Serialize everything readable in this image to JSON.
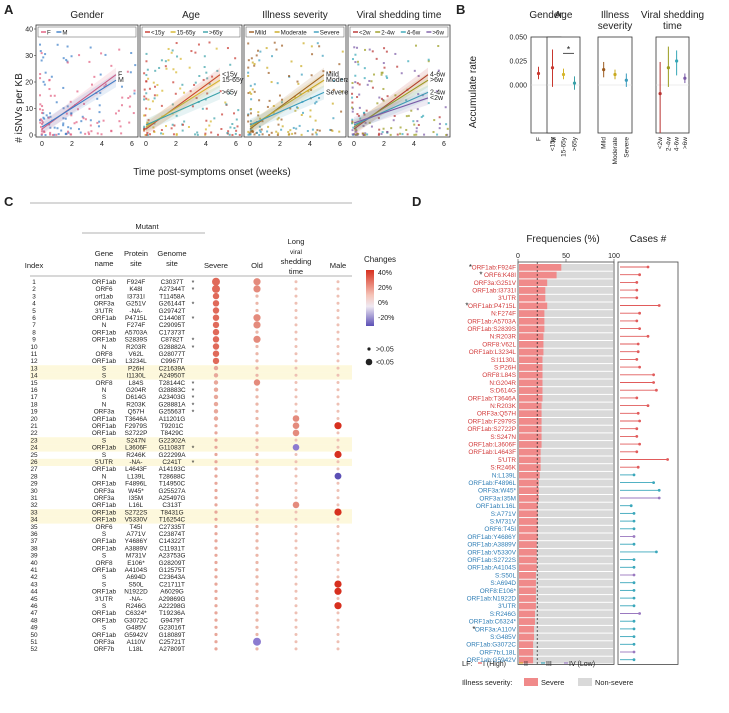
{
  "panels": {
    "a": "A",
    "b": "B",
    "c": "C",
    "d": "D"
  },
  "panel_a": {
    "ylabel": "# iSNVs per KB",
    "xlabel": "Time post-symptoms onset (weeks)",
    "yticks": [
      "0",
      "10",
      "20",
      "30",
      "40"
    ],
    "xticks": [
      "0",
      "2",
      "4",
      "6"
    ],
    "facets": [
      {
        "title": "Gender",
        "legend": [
          "F",
          "M"
        ],
        "lines": [
          "F",
          "M"
        ],
        "colors": [
          "#e15b7e",
          "#3b7ec7"
        ]
      },
      {
        "title": "Age",
        "legend": [
          "<15y",
          "15-65y",
          ">65y"
        ],
        "lines": [
          "<15y",
          "15-65y",
          ">65y"
        ],
        "colors": [
          "#c8382f",
          "#d6b52a",
          "#3aa1a8"
        ]
      },
      {
        "title": "Illness severity",
        "legend": [
          "Mild",
          "Moderate",
          "Severe"
        ],
        "lines": [
          "Mild",
          "Moderate",
          "Severe"
        ],
        "colors": [
          "#9c5a1e",
          "#c9a91e",
          "#3a9cbc"
        ]
      },
      {
        "title": "Viral shedding time",
        "legend": [
          "<2w",
          "2-4w",
          "4-6w",
          ">6w"
        ],
        "lines": [
          "4-6w",
          ">6w",
          "2-4w",
          "<2w"
        ],
        "colors": [
          "#b8312f",
          "#9a9b1e",
          "#35a6b6",
          "#7a5aa6"
        ]
      }
    ]
  },
  "panel_b": {
    "ylabel": "Accumulate rate",
    "yticks": [
      "0.000",
      "0.025",
      "0.050"
    ],
    "star": "*",
    "facets": [
      {
        "title": "Gender",
        "cats": [
          "F",
          "M"
        ]
      },
      {
        "title": "Age",
        "cats": [
          "<15y",
          "15-65y",
          ">65y"
        ]
      },
      {
        "title": "Illness\nseverity",
        "cats": [
          "Mild",
          "Moderate",
          "Severe"
        ]
      },
      {
        "title": "Viral shedding\ntime",
        "cats": [
          "<2w",
          "2-4w",
          "4-6w",
          ">6w"
        ]
      }
    ]
  },
  "panel_c": {
    "headers": {
      "mutant": "Mutant",
      "index": "Index",
      "gene": "Gene\nname",
      "protein": "Protein\nsite",
      "genome": "Genome\nsite",
      "severe": "Severe",
      "old": "Old",
      "long": "Long\nviral\nshedding\ntime",
      "male": "Male"
    },
    "legend": {
      "title": "Changes",
      "ticks": [
        "40%",
        "20%",
        "0%",
        "-20%"
      ],
      "p_title": "",
      ">": ">0.05",
      "<": "<0.05"
    },
    "rows": [
      [
        "1",
        "ORF1ab",
        "F924F",
        "C3037T",
        "*"
      ],
      [
        "2",
        "ORF6",
        "K48I",
        "A27344T",
        "*"
      ],
      [
        "3",
        "orf1ab",
        "I3731I",
        "T11458A",
        ""
      ],
      [
        "4",
        "ORF3a",
        "G251V",
        "G26144T",
        "*"
      ],
      [
        "5",
        "3'UTR",
        "-NA-",
        "G29742T",
        ""
      ],
      [
        "6",
        "ORF1ab",
        "P4715L",
        "C14408T",
        "*"
      ],
      [
        "7",
        "N",
        "F274F",
        "C29095T",
        ""
      ],
      [
        "8",
        "ORF1ab",
        "A5703A",
        "C17373T",
        ""
      ],
      [
        "9",
        "ORF1ab",
        "S2839S",
        "C8782T",
        "*"
      ],
      [
        "10",
        "N",
        "R203R",
        "G28882A",
        "*"
      ],
      [
        "11",
        "ORF8",
        "V62L",
        "G28077T",
        ""
      ],
      [
        "12",
        "ORF1ab",
        "L3234L",
        "C9967T",
        ""
      ],
      [
        "13",
        "S",
        "P26H",
        "C21639A",
        ""
      ],
      [
        "14",
        "S",
        "I1130L",
        "A24950T",
        ""
      ],
      [
        "15",
        "ORF8",
        "L84S",
        "T28144C",
        "*"
      ],
      [
        "16",
        "N",
        "G204R",
        "G28883C",
        "*"
      ],
      [
        "17",
        "S",
        "D614G",
        "A23403G",
        "*"
      ],
      [
        "18",
        "N",
        "R203K",
        "G28881A",
        "*"
      ],
      [
        "19",
        "ORF3a",
        "Q57H",
        "G25563T",
        "*"
      ],
      [
        "20",
        "ORF1ab",
        "T3646A",
        "A11201G",
        ""
      ],
      [
        "21",
        "ORF1ab",
        "F2979S",
        "T9201C",
        ""
      ],
      [
        "22",
        "ORF1ab",
        "S2722P",
        "T8429C",
        ""
      ],
      [
        "23",
        "S",
        "S247N",
        "G22302A",
        ""
      ],
      [
        "24",
        "ORF1ab",
        "L3606F",
        "G11083T",
        "*"
      ],
      [
        "25",
        "S",
        "R246K",
        "G22299A",
        ""
      ],
      [
        "26",
        "5'UTR",
        "-NA-",
        "C241T",
        "*"
      ],
      [
        "27",
        "ORF1ab",
        "L4643F",
        "A14193C",
        ""
      ],
      [
        "28",
        "N",
        "L139L",
        "T28688C",
        ""
      ],
      [
        "29",
        "ORF1ab",
        "F4896L",
        "T14950C",
        ""
      ],
      [
        "30",
        "ORF3a",
        "W45*",
        "G25527A",
        ""
      ],
      [
        "31",
        "ORF3a",
        "I35M",
        "A25497G",
        ""
      ],
      [
        "32",
        "ORF1ab",
        "L16L",
        "C313T",
        ""
      ],
      [
        "33",
        "ORF1ab",
        "S2722S",
        "T8431G",
        ""
      ],
      [
        "34",
        "ORF1ab",
        "V5330V",
        "T16254C",
        ""
      ],
      [
        "35",
        "ORF6",
        "T45I",
        "C27335T",
        ""
      ],
      [
        "36",
        "S",
        "A771V",
        "C23874T",
        ""
      ],
      [
        "37",
        "ORF1ab",
        "Y4686Y",
        "C14322T",
        ""
      ],
      [
        "38",
        "ORF1ab",
        "A3889V",
        "C11931T",
        ""
      ],
      [
        "39",
        "S",
        "M731V",
        "A23753G",
        ""
      ],
      [
        "40",
        "ORF8",
        "E106*",
        "G28209T",
        ""
      ],
      [
        "41",
        "ORF1ab",
        "A4104S",
        "G12575T",
        ""
      ],
      [
        "42",
        "S",
        "A694D",
        "C23643A",
        ""
      ],
      [
        "43",
        "S",
        "S50L",
        "C21711T",
        ""
      ],
      [
        "44",
        "ORF1ab",
        "N1922D",
        "A6029G",
        ""
      ],
      [
        "45",
        "3'UTR",
        "-NA-",
        "A29869G",
        ""
      ],
      [
        "46",
        "S",
        "R246G",
        "A22298G",
        ""
      ],
      [
        "47",
        "ORF1ab",
        "C6324*",
        "T19236A",
        ""
      ],
      [
        "48",
        "ORF1ab",
        "G3072C",
        "G9479T",
        ""
      ],
      [
        "49",
        "S",
        "G485V",
        "G23016T",
        ""
      ],
      [
        "50",
        "ORF1ab",
        "G5942V",
        "G18089T",
        ""
      ],
      [
        "51",
        "ORF3a",
        "A110V",
        "C25721T",
        ""
      ],
      [
        "52",
        "ORF7b",
        "L18L",
        "A27809T",
        ""
      ]
    ]
  },
  "panel_d": {
    "freq_title": "Frequencies (%)",
    "cases_title": "Cases #",
    "freq_ticks": [
      "0",
      "50",
      "100"
    ],
    "lf_label": "LF:",
    "lf_items": [
      "I (High)",
      "II",
      "III",
      "IV (Low)"
    ],
    "sev_label": "Illness severity:",
    "sev_items": [
      "Severe",
      "Non-severe"
    ],
    "labels": [
      [
        "ORF1ab:F924F",
        "red",
        "*"
      ],
      [
        "ORF6:K48I",
        "red",
        "*"
      ],
      [
        "ORF3a:G251V",
        "red",
        ""
      ],
      [
        "ORF1ab:I3731I",
        "red",
        ""
      ],
      [
        "3'UTR",
        "red",
        ""
      ],
      [
        "ORF1ab:P4715L",
        "red",
        "*"
      ],
      [
        "N:F274F",
        "red",
        ""
      ],
      [
        "ORF1ab:A5703A",
        "red",
        ""
      ],
      [
        "ORF1ab:S2839S",
        "red",
        ""
      ],
      [
        "N:R203R",
        "red",
        ""
      ],
      [
        "ORF8:V62L",
        "red",
        ""
      ],
      [
        "ORF1ab:L3234L",
        "red",
        ""
      ],
      [
        "S:I1130L",
        "red",
        ""
      ],
      [
        "S:P26H",
        "red",
        ""
      ],
      [
        "ORF8:L84S",
        "red",
        ""
      ],
      [
        "N:G204R",
        "red",
        ""
      ],
      [
        "S:D614G",
        "red",
        ""
      ],
      [
        "ORF1ab:T3646A",
        "red",
        ""
      ],
      [
        "N:R203K",
        "red",
        ""
      ],
      [
        "ORF3a:Q57H",
        "red",
        ""
      ],
      [
        "ORF1ab:F2979S",
        "red",
        ""
      ],
      [
        "ORF1ab:S2722P",
        "red",
        ""
      ],
      [
        "S:S247N",
        "red",
        ""
      ],
      [
        "ORF1ab:L3606F",
        "red",
        ""
      ],
      [
        "ORF1ab:L4643F",
        "red",
        ""
      ],
      [
        "5'UTR",
        "red",
        ""
      ],
      [
        "S:R246K",
        "red",
        ""
      ],
      [
        "N:L139L",
        "blue",
        ""
      ],
      [
        "ORF1ab:F4896L",
        "blue",
        ""
      ],
      [
        "ORF3a:W45*",
        "blue",
        ""
      ],
      [
        "ORF3a:I35M",
        "blue",
        ""
      ],
      [
        "ORF1ab:L16L",
        "blue",
        ""
      ],
      [
        "S:A771V",
        "blue",
        ""
      ],
      [
        "S:M731V",
        "blue",
        ""
      ],
      [
        "ORF6:T45I",
        "blue",
        ""
      ],
      [
        "ORF1ab:Y4686Y",
        "blue",
        ""
      ],
      [
        "ORF1ab:A3889V",
        "blue",
        ""
      ],
      [
        "ORF1ab:V5330V",
        "blue",
        ""
      ],
      [
        "ORF1ab:S2722S",
        "blue",
        ""
      ],
      [
        "ORF1ab:A4104S",
        "blue",
        ""
      ],
      [
        "S:S50L",
        "blue",
        ""
      ],
      [
        "S:A694D",
        "blue",
        ""
      ],
      [
        "ORF8:E106*",
        "blue",
        ""
      ],
      [
        "ORF1ab:N1922D",
        "blue",
        ""
      ],
      [
        "3'UTR",
        "blue",
        ""
      ],
      [
        "S:R246G",
        "blue",
        ""
      ],
      [
        "ORF1ab:C6324*",
        "blue",
        ""
      ],
      [
        "ORF3a:A110V",
        "blue",
        "*"
      ],
      [
        "S:G485V",
        "blue",
        ""
      ],
      [
        "ORF1ab:G3072C",
        "blue",
        ""
      ],
      [
        "ORF7b:L18L",
        "blue",
        ""
      ],
      [
        "ORF1ab:G5942V",
        "blue",
        ""
      ]
    ]
  },
  "colors": {
    "severe": "#f08a8a",
    "nonsevere": "#d9d9d9",
    "red_text": "#d23a3a",
    "blue_text": "#2e7db5",
    "pos": "#d7301f",
    "neg": "#5b4fb5"
  },
  "chart_data": [
    {
      "type": "bar",
      "panel": "D",
      "title": "Frequencies (%)",
      "categories": [
        "ORF1ab:F924F",
        "ORF6:K48I",
        "ORF3a:G251V",
        "ORF1ab:I3731I",
        "3'UTR",
        "ORF1ab:P4715L",
        "N:F274F",
        "ORF1ab:A5703A",
        "ORF1ab:S2839S",
        "N:R203R",
        "ORF8:V62L",
        "ORF1ab:L3234L",
        "S:I1130L",
        "S:P26H",
        "ORF8:L84S",
        "N:G204R",
        "S:D614G",
        "ORF1ab:T3646A",
        "N:R203K",
        "ORF3a:Q57H",
        "ORF1ab:F2979S",
        "ORF1ab:S2722P",
        "S:S247N",
        "ORF1ab:L3606F",
        "ORF1ab:L4643F",
        "5'UTR",
        "S:R246K",
        "N:L139L",
        "ORF1ab:F4896L",
        "ORF3a:W45*",
        "ORF3a:I35M",
        "ORF1ab:L16L",
        "S:A771V",
        "S:M731V",
        "ORF6:T45I",
        "ORF1ab:Y4686Y",
        "ORF1ab:A3889V",
        "ORF1ab:V5330V",
        "ORF1ab:S2722S",
        "ORF1ab:A4104S",
        "S:S50L",
        "S:A694D",
        "ORF8:E106*",
        "ORF1ab:N1922D",
        "3'UTR",
        "S:R246G",
        "ORF1ab:C6324*",
        "ORF3a:A110V",
        "S:G485V",
        "ORF1ab:G3072C",
        "ORF7b:L18L",
        "ORF1ab:G5942V"
      ],
      "series": [
        {
          "name": "Severe",
          "values": [
            45,
            40,
            30,
            28,
            28,
            30,
            27,
            27,
            27,
            26,
            26,
            26,
            25,
            25,
            25,
            25,
            25,
            25,
            24,
            24,
            24,
            24,
            24,
            24,
            23,
            23,
            23,
            22,
            21,
            21,
            21,
            20,
            20,
            20,
            20,
            20,
            19,
            19,
            19,
            19,
            18,
            18,
            18,
            18,
            18,
            17,
            17,
            16,
            16,
            15,
            15,
            15
          ]
        }
      ],
      "xlim": [
        0,
        100
      ],
      "reference_line": 20
    },
    {
      "type": "scatter",
      "panel": "D",
      "title": "Cases #",
      "values": [
        20,
        14,
        12,
        12,
        12,
        28,
        14,
        12,
        14,
        20,
        13,
        13,
        12,
        14,
        24,
        24,
        26,
        12,
        20,
        13,
        14,
        12,
        12,
        14,
        12,
        34,
        13,
        10,
        24,
        28,
        28,
        8,
        10,
        10,
        10,
        10,
        10,
        26,
        10,
        10,
        10,
        10,
        10,
        10,
        10,
        14,
        10,
        10,
        10,
        10,
        10,
        10
      ]
    },
    {
      "type": "scatter",
      "panel": "B",
      "title": "Accumulate rate",
      "series": [
        {
          "name": "Gender",
          "categories": [
            "F",
            "M"
          ],
          "values": [
            0.012,
            0.009
          ],
          "low": [
            0.006,
            0.004
          ],
          "high": [
            0.019,
            0.014
          ]
        },
        {
          "name": "Age",
          "categories": [
            "<15y",
            "15-65y",
            ">65y"
          ],
          "values": [
            0.018,
            0.011,
            0.002
          ],
          "low": [
            -0.002,
            0.006,
            -0.005
          ],
          "high": [
            0.037,
            0.017,
            0.009
          ]
        },
        {
          "name": "Illness severity",
          "categories": [
            "Mild",
            "Moderate",
            "Severe"
          ],
          "values": [
            0.016,
            0.011,
            0.005
          ],
          "low": [
            0.008,
            0.006,
            -0.002
          ],
          "high": [
            0.024,
            0.016,
            0.012
          ]
        },
        {
          "name": "Viral shedding time",
          "categories": [
            "<2w",
            "2-4w",
            "4-6w",
            ">6w"
          ],
          "values": [
            -0.009,
            0.018,
            0.025,
            0.007
          ],
          "low": [
            -0.05,
            -0.002,
            0.01,
            0.002
          ],
          "high": [
            0.024,
            0.04,
            0.036,
            0.012
          ]
        }
      ],
      "ylim": [
        -0.05,
        0.05
      ]
    }
  ]
}
